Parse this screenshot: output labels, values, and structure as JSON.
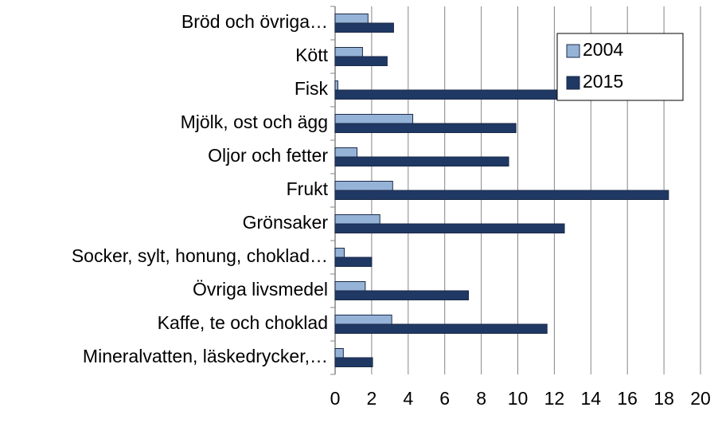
{
  "chart_data": {
    "type": "barh",
    "categories": [
      "Bröd och övriga…",
      "Kött",
      "Fisk",
      "Mjölk, ost och ägg",
      "Oljor och fetter",
      "Frukt",
      "Grönsaker",
      "Socker, sylt, honung, choklad…",
      "Övriga livsmedel",
      "Kaffe, te och choklad",
      "Mineralvatten, läskedrycker,…"
    ],
    "series": [
      {
        "name": "2004",
        "color": "#95b3d7",
        "values": [
          1.8,
          1.5,
          0.15,
          4.25,
          1.2,
          3.15,
          2.45,
          0.5,
          1.65,
          3.1,
          0.45
        ]
      },
      {
        "name": "2015",
        "color": "#1f3864",
        "values": [
          3.2,
          2.85,
          12.5,
          9.9,
          9.5,
          18.25,
          12.55,
          2.0,
          7.3,
          11.6,
          2.05
        ]
      }
    ],
    "xlim": [
      0,
      20
    ],
    "xticks": [
      0,
      2,
      4,
      6,
      8,
      10,
      12,
      14,
      16,
      18,
      20
    ],
    "grid": true,
    "legend": "upper right"
  }
}
